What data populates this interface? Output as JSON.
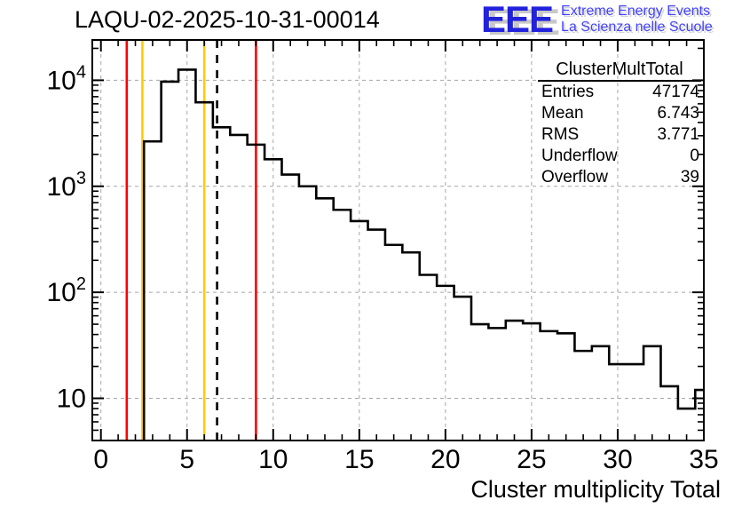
{
  "header": {
    "title": "LAQU-02-2025-10-31-00014",
    "logo": {
      "acronym": "EEE",
      "subtitle_line1": "Extreme Energy Events",
      "subtitle_line2": "La Scienza nelle Scuole",
      "acronym_color": "#2222dd",
      "subtitle_color": "#4242ff"
    }
  },
  "stats_box": {
    "title": "ClusterMultTotal",
    "rows": [
      {
        "label": "Entries",
        "value": "47174"
      },
      {
        "label": "Mean",
        "value": "6.743"
      },
      {
        "label": "RMS",
        "value": "3.771"
      },
      {
        "label": "Underflow",
        "value": "0"
      },
      {
        "label": "Overflow",
        "value": "39"
      }
    ]
  },
  "chart_data": {
    "type": "bar",
    "style": "step-histogram",
    "title": "LAQU-02-2025-10-31-00014",
    "xlabel": "Cluster multiplicity Total",
    "ylabel": "",
    "y_scale": "log",
    "x_range": [
      -0.5,
      35
    ],
    "y_range": [
      4,
      24000
    ],
    "grid": true,
    "bin_width": 1,
    "bin_centers": [
      3,
      4,
      5,
      6,
      7,
      8,
      9,
      10,
      11,
      12,
      13,
      14,
      15,
      16,
      17,
      18,
      19,
      20,
      21,
      22,
      23,
      24,
      25,
      26,
      27,
      28,
      29,
      30,
      31,
      32,
      33,
      34,
      35
    ],
    "counts": [
      2650,
      9700,
      12600,
      6200,
      3600,
      3050,
      2470,
      1800,
      1290,
      1000,
      770,
      600,
      470,
      390,
      280,
      238,
      146,
      115,
      91,
      50,
      46,
      54,
      51,
      43,
      41,
      28,
      31,
      21,
      21,
      31,
      13,
      8,
      12
    ],
    "x_major_ticks": [
      0,
      5,
      10,
      15,
      20,
      25,
      30,
      35
    ],
    "y_major_ticks": [
      10,
      100,
      1000,
      10000
    ],
    "x_grid": [
      0,
      5,
      10,
      15,
      20,
      25,
      30
    ],
    "marker_lines": [
      {
        "x": 1.5,
        "color": "#ff0000",
        "style": "solid",
        "name": "red-marker-line-left"
      },
      {
        "x": 2.5,
        "color": "#ffcc00",
        "style": "solid",
        "name": "yellow-marker-line-left"
      },
      {
        "x": 6.0,
        "color": "#ffcc00",
        "style": "solid",
        "name": "yellow-marker-line-right"
      },
      {
        "x": 6.743,
        "color": "#000000",
        "style": "dashed",
        "name": "mean-dashed-line"
      },
      {
        "x": 9.0,
        "color": "#ff0000",
        "style": "solid",
        "name": "red-marker-line-right"
      }
    ],
    "colors": {
      "histogram": "#000000",
      "grid": "#a6a6a6",
      "frame": "#000000"
    }
  }
}
